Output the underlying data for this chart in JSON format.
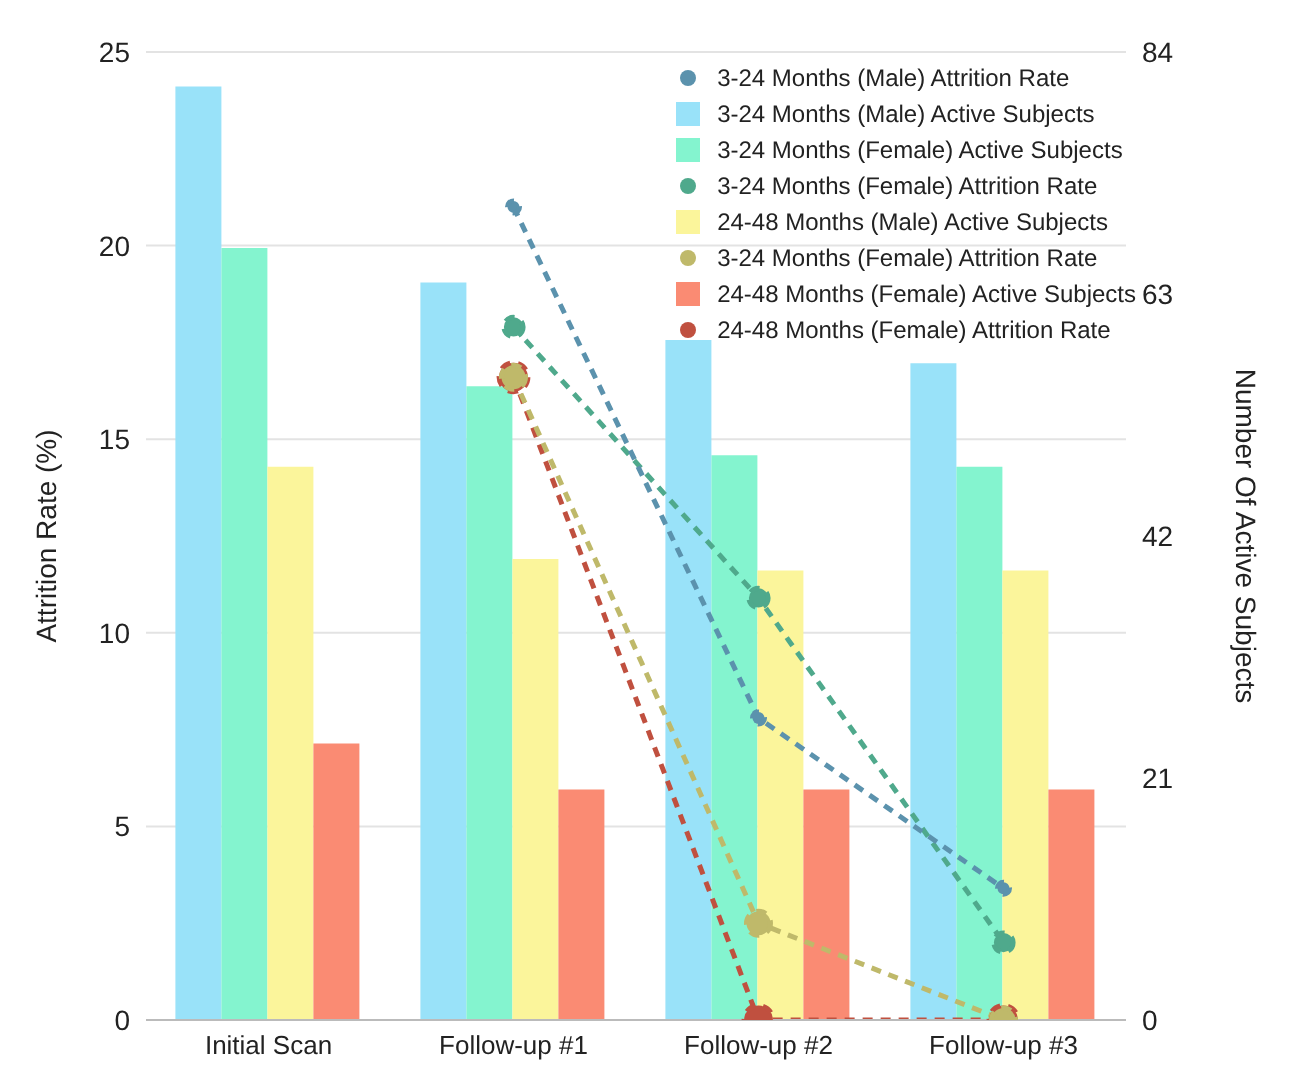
{
  "chart_data": {
    "type": "bar",
    "categories": [
      "Initial Scan",
      "Follow-up #1",
      "Follow-up #2",
      "Follow-up #3"
    ],
    "ylabel": "Attrition Rate (%)",
    "y2label": "Number Of Active Subjects",
    "ylim": [
      0,
      25
    ],
    "yticks": [
      0,
      5,
      10,
      15,
      20,
      25
    ],
    "y2lim": [
      0,
      84
    ],
    "y2ticks": [
      0,
      21,
      42,
      63,
      84
    ],
    "grid": "y",
    "legend": "top right",
    "marker": "circle",
    "line_style": "dashed",
    "series": [
      {
        "name": "3-24 Months (Male) Attrition Rate",
        "type": "line",
        "color": "#5b92ad",
        "values": [
          null,
          21.0,
          7.8,
          3.4
        ]
      },
      {
        "name": "3-24 Months (Male) Active Subjects",
        "axis": "y2",
        "color": "#99e2f9",
        "values": [
          81,
          64,
          59,
          57
        ]
      },
      {
        "name": "3-24 Months (Female) Active Subjects",
        "axis": "y2",
        "color": "#84f4cf",
        "values": [
          67,
          55,
          49,
          48
        ]
      },
      {
        "name": "3-24 Months (Female) Attrition Rate",
        "type": "line",
        "color": "#4fa98c",
        "values": [
          null,
          17.9,
          10.9,
          2.0
        ]
      },
      {
        "name": "24-48 Months (Male) Active Subjects",
        "axis": "y2",
        "color": "#fbf59b",
        "values": [
          48,
          40,
          39,
          39
        ]
      },
      {
        "name": "3-24 Months (Female) Attrition Rate",
        "type": "line",
        "color": "#bfb96a",
        "values": [
          null,
          16.6,
          2.5,
          0
        ]
      },
      {
        "name": "24-48 Months (Female) Active Subjects",
        "axis": "y2",
        "color": "#fa8b73",
        "values": [
          24,
          20,
          20,
          20
        ]
      },
      {
        "name": "24-48 Months (Female) Attrition Rate",
        "type": "line",
        "color": "#c0503f",
        "values": [
          null,
          16.6,
          0,
          0
        ]
      }
    ]
  }
}
